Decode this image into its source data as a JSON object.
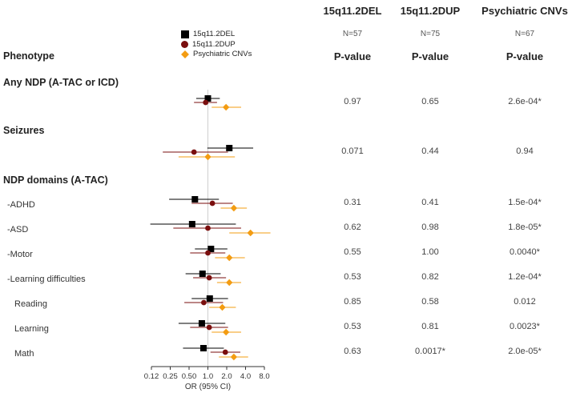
{
  "chart_data": {
    "type": "forest",
    "x_scale": "log",
    "xlabel": "OR (95% CI)",
    "x_ticks": [
      0.125,
      0.25,
      0.5,
      1.0,
      2.0,
      4.0,
      8.0
    ],
    "x_tick_labels": [
      "0.12",
      "0.25",
      "0.50",
      "1.0",
      "2.0",
      "4.0",
      "8.0"
    ],
    "reference_line": 1.0,
    "series": [
      {
        "name": "15q11.2DEL",
        "n_label": "N=57",
        "color": "#000000",
        "marker": "square"
      },
      {
        "name": "15q11.2DUP",
        "n_label": "N=75",
        "color": "#7a0e0e",
        "marker": "circle"
      },
      {
        "name": "Psychiatric CNVs",
        "n_label": "N=67",
        "color": "#f39c12",
        "marker": "diamond"
      }
    ],
    "sections": [
      {
        "label": "Any NDP (A-TAC or ICD)"
      },
      {
        "label": "Seizures"
      },
      {
        "label": "NDP domains (A-TAC)"
      }
    ],
    "rows": [
      {
        "label": "",
        "section": 0,
        "estimates": [
          {
            "or": 1.0,
            "lo": 0.65,
            "hi": 1.55
          },
          {
            "or": 0.92,
            "lo": 0.6,
            "hi": 1.4
          },
          {
            "or": 1.95,
            "lo": 1.15,
            "hi": 3.4
          }
        ],
        "pvalues": [
          "0.97",
          "0.65",
          "2.6e-04*"
        ]
      },
      {
        "label": "",
        "section": 1,
        "estimates": [
          {
            "or": 2.2,
            "lo": 0.98,
            "hi": 5.3
          },
          {
            "or": 0.6,
            "lo": 0.19,
            "hi": 2.1
          },
          {
            "or": 1.0,
            "lo": 0.34,
            "hi": 2.7
          }
        ],
        "pvalues": [
          "0.071",
          "0.44",
          "0.94"
        ]
      },
      {
        "label": "-ADHD",
        "section": 2,
        "estimates": [
          {
            "or": 0.62,
            "lo": 0.24,
            "hi": 1.5
          },
          {
            "or": 1.18,
            "lo": 0.55,
            "hi": 2.5
          },
          {
            "or": 2.6,
            "lo": 1.6,
            "hi": 4.2
          }
        ],
        "pvalues": [
          "0.31",
          "0.41",
          "1.5e-04*"
        ]
      },
      {
        "label": "-ASD",
        "section": 2,
        "estimates": [
          {
            "or": 0.56,
            "lo": 0.12,
            "hi": 2.8
          },
          {
            "or": 1.0,
            "lo": 0.28,
            "hi": 3.4
          },
          {
            "or": 4.8,
            "lo": 2.2,
            "hi": 10.0
          }
        ],
        "pvalues": [
          "0.62",
          "0.98",
          "1.8e-05*"
        ]
      },
      {
        "label": "-Motor",
        "section": 2,
        "estimates": [
          {
            "or": 1.12,
            "lo": 0.62,
            "hi": 2.05
          },
          {
            "or": 1.0,
            "lo": 0.52,
            "hi": 1.9
          },
          {
            "or": 2.2,
            "lo": 1.3,
            "hi": 3.9
          }
        ],
        "pvalues": [
          "0.55",
          "1.00",
          "0.0040*"
        ]
      },
      {
        "label": "-Learning difficulties",
        "section": 2,
        "estimates": [
          {
            "or": 0.82,
            "lo": 0.44,
            "hi": 1.6
          },
          {
            "or": 1.05,
            "lo": 0.58,
            "hi": 1.95
          },
          {
            "or": 2.2,
            "lo": 1.4,
            "hi": 3.4
          }
        ],
        "pvalues": [
          "0.53",
          "0.82",
          "1.2e-04*"
        ]
      },
      {
        "label": "Reading",
        "section": 2,
        "estimates": [
          {
            "or": 1.07,
            "lo": 0.55,
            "hi": 2.1
          },
          {
            "or": 0.86,
            "lo": 0.42,
            "hi": 1.75
          },
          {
            "or": 1.7,
            "lo": 1.05,
            "hi": 2.8
          }
        ],
        "pvalues": [
          "0.85",
          "0.58",
          "0.012"
        ]
      },
      {
        "label": "Learning",
        "section": 2,
        "estimates": [
          {
            "or": 0.8,
            "lo": 0.34,
            "hi": 1.9
          },
          {
            "or": 1.05,
            "lo": 0.52,
            "hi": 2.1
          },
          {
            "or": 1.95,
            "lo": 1.15,
            "hi": 3.4
          }
        ],
        "pvalues": [
          "0.53",
          "0.81",
          "0.0023*"
        ]
      },
      {
        "label": "Math",
        "section": 2,
        "estimates": [
          {
            "or": 0.85,
            "lo": 0.4,
            "hi": 1.8
          },
          {
            "or": 1.9,
            "lo": 1.1,
            "hi": 3.3
          },
          {
            "or": 2.6,
            "lo": 1.5,
            "hi": 4.4
          }
        ],
        "pvalues": [
          "0.63",
          "0.0017*",
          "2.0e-05*"
        ]
      }
    ]
  },
  "table": {
    "phenotype_header": "Phenotype",
    "pvalue_header": "P-value"
  }
}
